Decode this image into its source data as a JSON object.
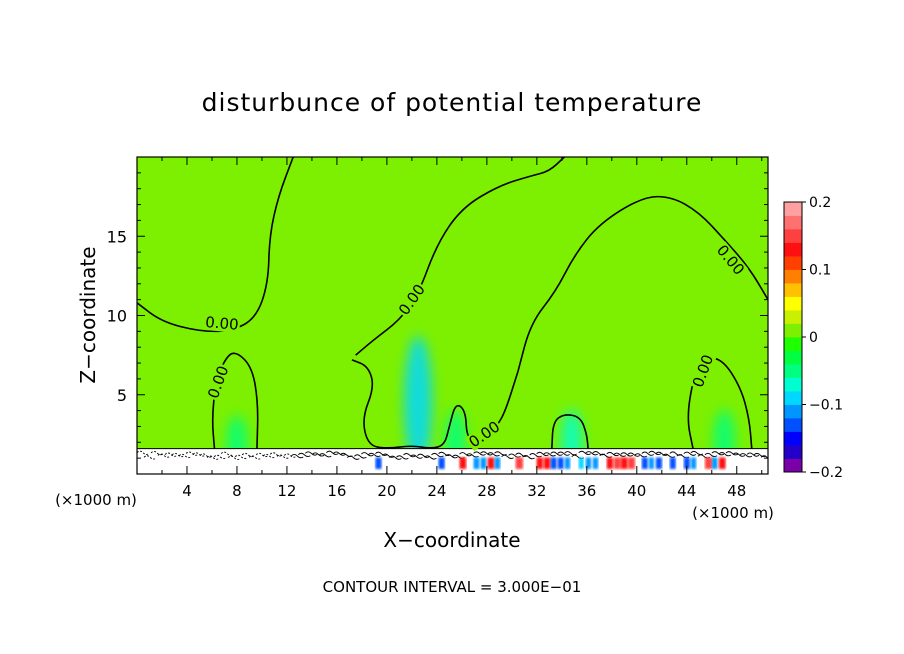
{
  "chart_data": {
    "type": "heatmap",
    "title": "disturbunce of potential temperature",
    "xlabel": "X−coordinate",
    "ylabel": "Z−coordinate",
    "x_unit_left": "(×1000 m)",
    "x_unit_right": "(×1000 m)",
    "xlim": [
      0,
      50.5
    ],
    "ylim": [
      0,
      20
    ],
    "x_ticks": [
      4,
      8,
      12,
      16,
      20,
      24,
      28,
      32,
      36,
      40,
      44,
      48
    ],
    "y_ticks": [
      5,
      10,
      15
    ],
    "contour_label": "0.00",
    "contour_interval_text": "CONTOUR INTERVAL = 3.000E−01",
    "colorbar": {
      "range": [
        -0.2,
        0.2
      ],
      "tick_values": [
        0.2,
        0.1,
        0,
        -0.1,
        -0.2
      ],
      "tick_labels": [
        "0.2",
        "0.1",
        "0",
        "−0.1",
        "−0.2"
      ],
      "colors": [
        "#7a00a8",
        "#2400c8",
        "#0000ff",
        "#0050ff",
        "#0096ff",
        "#00d8ff",
        "#00ffd0",
        "#00ff80",
        "#00ff40",
        "#20ff00",
        "#7cf000",
        "#c8f000",
        "#ffff00",
        "#ffc000",
        "#ff8000",
        "#ff4000",
        "#ff1010",
        "#ff4040",
        "#ff7070",
        "#ffa0a0"
      ]
    },
    "background_value": 0.02,
    "anomalies": [
      {
        "x": 8.0,
        "z": 1.8,
        "value": -0.06
      },
      {
        "x": 15.5,
        "z": 3.5,
        "value": 0.01
      },
      {
        "x": 22.5,
        "z": 4.5,
        "value": -0.09
      },
      {
        "x": 25.5,
        "z": 2.0,
        "value": -0.05
      },
      {
        "x": 34.8,
        "z": 2.0,
        "value": -0.07
      },
      {
        "x": 47.0,
        "z": 2.0,
        "value": -0.05
      }
    ],
    "zero_contours": [
      {
        "label_at": [
          6.8,
          9.5
        ],
        "points": [
          [
            0,
            10.8
          ],
          [
            2,
            9.6
          ],
          [
            5,
            9.0
          ],
          [
            7.5,
            9.0
          ],
          [
            9.5,
            9.8
          ],
          [
            10.5,
            12
          ],
          [
            10.6,
            15
          ],
          [
            11.3,
            17.5
          ],
          [
            12.5,
            20
          ]
        ]
      },
      {
        "label_at": [
          22.0,
          11.0
        ],
        "points": [
          [
            17.5,
            7.5
          ],
          [
            19,
            8.5
          ],
          [
            21,
            9.7
          ],
          [
            22.5,
            11.3
          ],
          [
            24,
            14.5
          ],
          [
            26,
            16.8
          ],
          [
            29,
            18.2
          ],
          [
            31.5,
            18.8
          ],
          [
            33,
            19.1
          ],
          [
            34.2,
            20
          ]
        ]
      },
      {
        "label_at": [
          47.5,
          13.5
        ],
        "points": [
          [
            30.5,
            6.5
          ],
          [
            31.5,
            9.5
          ],
          [
            33.5,
            11.5
          ],
          [
            35,
            13.8
          ],
          [
            37,
            15.8
          ],
          [
            40.5,
            17.5
          ],
          [
            42.8,
            17.5
          ],
          [
            45,
            16.5
          ],
          [
            47,
            14.8
          ],
          [
            49,
            13.0
          ],
          [
            50.5,
            11.0
          ]
        ]
      },
      {
        "label_at": [
          6.5,
          5.8
        ],
        "points": [
          [
            6.2,
            1.6
          ],
          [
            6.0,
            3.5
          ],
          [
            6.3,
            5.8
          ],
          [
            7.0,
            7.2
          ],
          [
            7.8,
            7.8
          ],
          [
            9.2,
            6.8
          ],
          [
            9.7,
            4.5
          ],
          [
            9.6,
            1.6
          ]
        ]
      },
      {
        "label_at": [
          45.3,
          6.5
        ],
        "points": [
          [
            44.5,
            1.6
          ],
          [
            44.0,
            3.5
          ],
          [
            44.5,
            6.0
          ],
          [
            45.3,
            7.3
          ],
          [
            46.8,
            7.3
          ],
          [
            48.3,
            5.5
          ],
          [
            49.0,
            3.5
          ],
          [
            49.2,
            1.6
          ]
        ]
      },
      {
        "label_at": [
          27.8,
          2.5
        ],
        "points": [
          [
            17.2,
            7.2
          ],
          [
            18.5,
            6.8
          ],
          [
            19.0,
            5.5
          ],
          [
            18.0,
            3.5
          ],
          [
            18.5,
            1.8
          ],
          [
            20,
            1.6
          ],
          [
            22,
            1.8
          ],
          [
            23.5,
            1.6
          ],
          [
            24.6,
            1.8
          ],
          [
            25,
            3.0
          ],
          [
            25.5,
            4.5
          ],
          [
            26.3,
            4.0
          ],
          [
            26.4,
            2.2
          ],
          [
            27.5,
            2.0
          ],
          [
            28.8,
            3.0
          ],
          [
            29.5,
            4.0
          ],
          [
            30.5,
            6.5
          ]
        ]
      },
      {
        "label_at": null,
        "points": [
          [
            33.2,
            1.6
          ],
          [
            33.3,
            3.3
          ],
          [
            34.2,
            3.8
          ],
          [
            35.5,
            3.6
          ],
          [
            36.0,
            2.5
          ],
          [
            36.1,
            1.6
          ]
        ]
      }
    ]
  }
}
